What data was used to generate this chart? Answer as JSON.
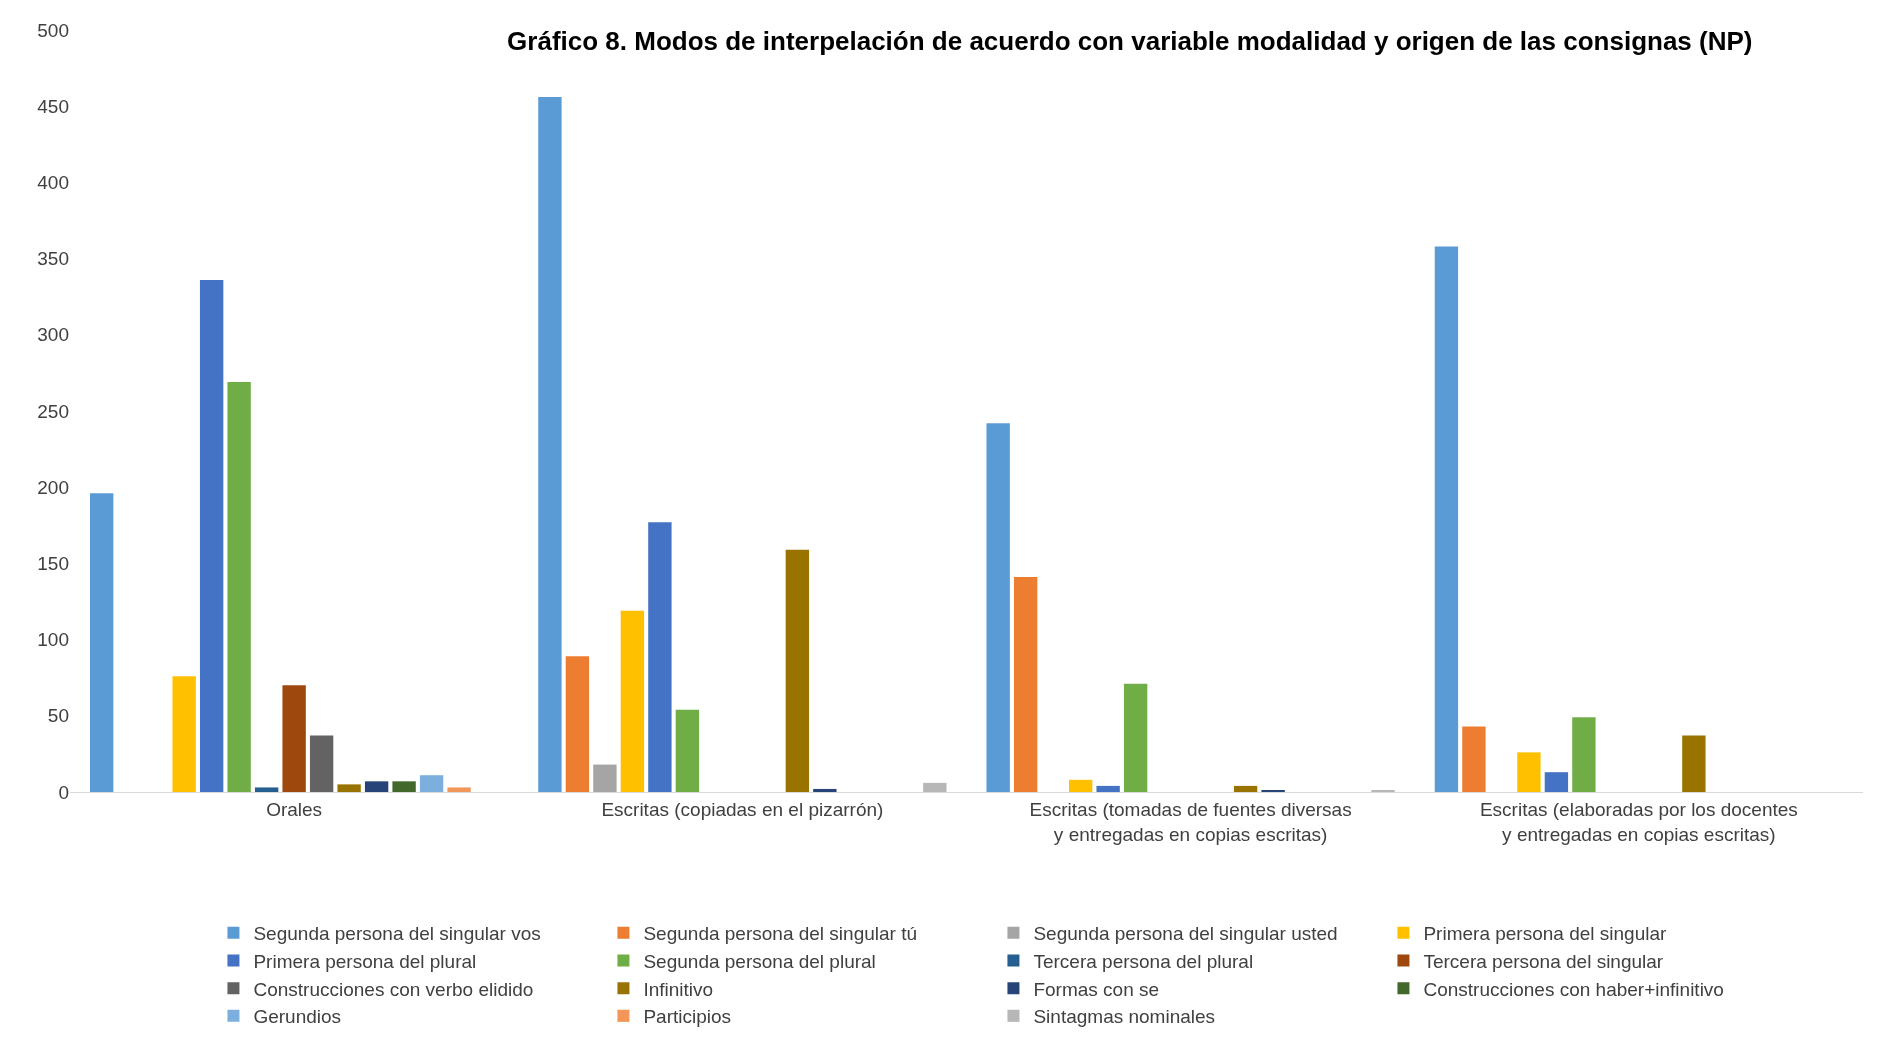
{
  "chart_data": {
    "type": "bar",
    "title": "Gráfico 8. Modos de interpelación de acuerdo con variable modalidad y origen de las consignas (NP)",
    "categories": [
      "Orales",
      "Escritas (copiadas en el pizarrón)",
      "Escritas (tomadas de fuentes diversas y entregadas en copias escritas)",
      "Escritas (elaboradas por los docentes y entregadas en copias escritas)"
    ],
    "series": [
      {
        "name": "Segunda persona del singular vos",
        "color": "#5b9bd5",
        "values": [
          196,
          456,
          242,
          358
        ]
      },
      {
        "name": "Segunda persona del singular tú",
        "color": "#ed7d31",
        "values": [
          0,
          89,
          141,
          43
        ]
      },
      {
        "name": "Segunda persona del singular usted",
        "color": "#a5a5a5",
        "values": [
          0,
          18,
          0,
          0
        ]
      },
      {
        "name": "Primera persona del singular",
        "color": "#ffc000",
        "values": [
          76,
          119,
          8,
          26
        ]
      },
      {
        "name": "Primera persona del plural",
        "color": "#4472c4",
        "values": [
          336,
          177,
          4,
          13
        ]
      },
      {
        "name": "Segunda persona del plural",
        "color": "#70ad47",
        "values": [
          269,
          54,
          71,
          49
        ]
      },
      {
        "name": "Tercera persona del plural",
        "color": "#255e91",
        "values": [
          3,
          0,
          0,
          0
        ]
      },
      {
        "name": "Tercera persona del singular",
        "color": "#9e480e",
        "values": [
          70,
          0,
          0,
          0
        ]
      },
      {
        "name": "Construcciones con verbo elidido",
        "color": "#636363",
        "values": [
          37,
          0,
          0,
          0
        ]
      },
      {
        "name": "Infinitivo",
        "color": "#997300",
        "values": [
          5,
          159,
          4,
          37
        ]
      },
      {
        "name": "Formas con se",
        "color": "#264478",
        "values": [
          7,
          2,
          1,
          0
        ]
      },
      {
        "name": "Construcciones con haber+infinitivo",
        "color": "#43682b",
        "values": [
          7,
          0,
          0,
          0
        ]
      },
      {
        "name": "Gerundios",
        "color": "#7cafdd",
        "values": [
          11,
          0,
          0,
          0
        ]
      },
      {
        "name": "Participios",
        "color": "#f1975a",
        "values": [
          3,
          0,
          0,
          0
        ]
      },
      {
        "name": "Sintagmas nominales",
        "color": "#b7b7b7",
        "values": [
          0,
          6,
          1,
          0
        ]
      }
    ],
    "ylim": [
      0,
      500
    ],
    "yticks": [
      0,
      50,
      100,
      150,
      200,
      250,
      300,
      350,
      400,
      450,
      500
    ],
    "grid": false,
    "legend": "bottom"
  }
}
